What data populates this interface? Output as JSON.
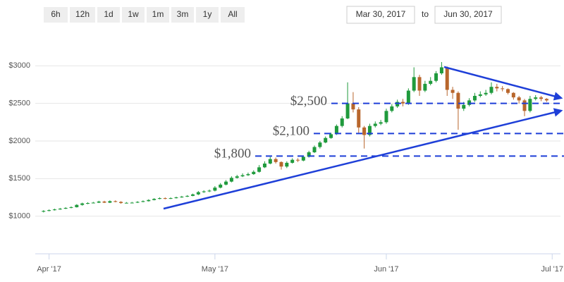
{
  "range_selector": {
    "buttons": [
      "6h",
      "12h",
      "1d",
      "1w",
      "1m",
      "3m",
      "1y",
      "All"
    ],
    "from": "Mar 30, 2017",
    "to_label": "to",
    "to": "Jun 30, 2017"
  },
  "chart_data": {
    "type": "candlestick",
    "up_color": "#1f9a3c",
    "down_color": "#b8662c",
    "open": [
      1060,
      1070,
      1080,
      1090,
      1100,
      1110,
      1120,
      1150,
      1170,
      1175,
      1180,
      1195,
      1180,
      1200,
      1190,
      1175,
      1178,
      1180,
      1190,
      1200,
      1215,
      1230,
      1240,
      1235,
      1240,
      1250,
      1260,
      1270,
      1290,
      1320,
      1330,
      1340,
      1380,
      1420,
      1460,
      1510,
      1530,
      1545,
      1560,
      1590,
      1650,
      1700,
      1760,
      1720,
      1660,
      1710,
      1750,
      1740,
      1790,
      1850,
      1920,
      1980,
      2040,
      2090,
      2200,
      2300,
      2500,
      2420,
      2180,
      2080,
      2200,
      2230,
      2250,
      2400,
      2460,
      2520,
      2500,
      2670,
      2850,
      2670,
      2760,
      2800,
      2900,
      2980,
      2680,
      2640,
      2430,
      2480,
      2540,
      2600,
      2620,
      2640,
      2720,
      2700,
      2690,
      2640,
      2580,
      2540,
      2400,
      2560,
      2580,
      2560
    ],
    "high": [
      1080,
      1090,
      1100,
      1110,
      1120,
      1130,
      1160,
      1180,
      1185,
      1190,
      1205,
      1205,
      1210,
      1210,
      1200,
      1188,
      1190,
      1200,
      1210,
      1225,
      1240,
      1250,
      1250,
      1250,
      1260,
      1270,
      1280,
      1300,
      1335,
      1345,
      1355,
      1400,
      1440,
      1480,
      1530,
      1550,
      1570,
      1580,
      1610,
      1680,
      1730,
      1790,
      1780,
      1730,
      1730,
      1770,
      1770,
      1800,
      1870,
      1940,
      2000,
      2060,
      2110,
      2220,
      2330,
      2780,
      2650,
      2450,
      2200,
      2230,
      2260,
      2280,
      2430,
      2490,
      2550,
      2560,
      2700,
      2980,
      2880,
      2800,
      2850,
      2930,
      3050,
      2990,
      2720,
      2660,
      2520,
      2570,
      2640,
      2660,
      2680,
      2780,
      2760,
      2730,
      2700,
      2650,
      2600,
      2560,
      2600,
      2610,
      2600,
      2570
    ],
    "low": [
      1050,
      1065,
      1075,
      1085,
      1095,
      1105,
      1115,
      1140,
      1160,
      1170,
      1175,
      1175,
      1175,
      1185,
      1165,
      1170,
      1172,
      1175,
      1185,
      1195,
      1210,
      1225,
      1225,
      1228,
      1235,
      1245,
      1255,
      1265,
      1280,
      1310,
      1320,
      1330,
      1370,
      1410,
      1450,
      1500,
      1520,
      1535,
      1550,
      1580,
      1640,
      1690,
      1700,
      1620,
      1640,
      1700,
      1720,
      1730,
      1780,
      1840,
      1900,
      1970,
      2030,
      2080,
      2180,
      2290,
      2380,
      2100,
      1900,
      2060,
      2180,
      2210,
      2230,
      2380,
      2440,
      2460,
      2480,
      2650,
      2600,
      2650,
      2740,
      2780,
      2880,
      2600,
      2560,
      2150,
      2400,
      2460,
      2520,
      2580,
      2600,
      2620,
      2660,
      2660,
      2620,
      2550,
      2500,
      2330,
      2380,
      2540,
      2530,
      2520
    ],
    "close": [
      1070,
      1080,
      1090,
      1100,
      1110,
      1120,
      1150,
      1170,
      1175,
      1180,
      1195,
      1180,
      1200,
      1190,
      1175,
      1178,
      1180,
      1190,
      1200,
      1215,
      1230,
      1240,
      1235,
      1240,
      1250,
      1260,
      1270,
      1290,
      1320,
      1330,
      1340,
      1380,
      1420,
      1460,
      1510,
      1530,
      1545,
      1560,
      1590,
      1650,
      1700,
      1760,
      1720,
      1660,
      1710,
      1750,
      1740,
      1790,
      1850,
      1920,
      1980,
      2040,
      2090,
      2200,
      2300,
      2500,
      2420,
      2180,
      2080,
      2200,
      2230,
      2250,
      2400,
      2460,
      2520,
      2500,
      2670,
      2850,
      2670,
      2760,
      2800,
      2900,
      2980,
      2680,
      2640,
      2430,
      2480,
      2540,
      2600,
      2620,
      2640,
      2720,
      2700,
      2690,
      2640,
      2580,
      2540,
      2400,
      2560,
      2580,
      2560,
      2540
    ],
    "xlim": [
      -1.5,
      93.5
    ],
    "xticks": [
      {
        "value": 1,
        "label": "Apr '17"
      },
      {
        "value": 31,
        "label": "May '17"
      },
      {
        "value": 62,
        "label": "Jun '17"
      },
      {
        "value": 92,
        "label": "Jul '17"
      }
    ],
    "ylim": [
      500,
      3500
    ],
    "yticks": [
      {
        "value": 1000,
        "label": "$1000"
      },
      {
        "value": 1500,
        "label": "$1500"
      },
      {
        "value": 2000,
        "label": "$2000"
      },
      {
        "value": 2500,
        "label": "$2500"
      },
      {
        "value": 3000,
        "label": "$3000"
      }
    ],
    "grid": true,
    "annotations": [
      {
        "text": "$2,500",
        "value": 2500
      },
      {
        "text": "$2,100",
        "value": 2100
      },
      {
        "text": "$1,800",
        "value": 1800
      }
    ],
    "annotation_color": "#1e3fd8"
  }
}
